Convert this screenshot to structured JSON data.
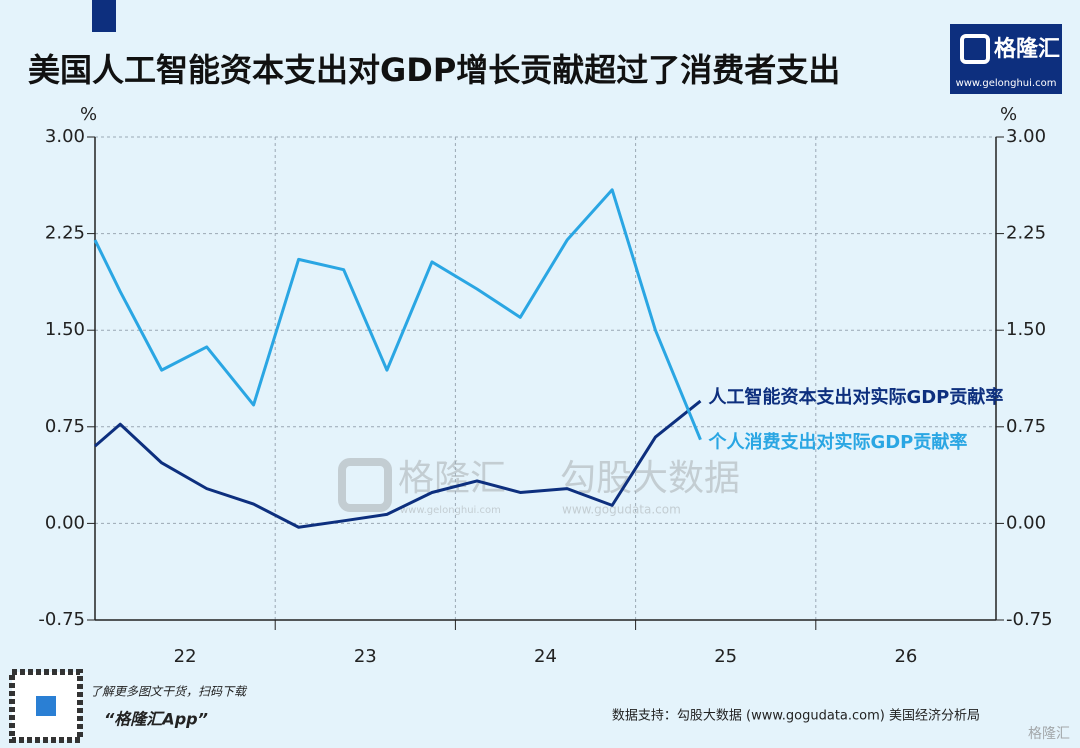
{
  "chart_data": {
    "type": "line",
    "title": "美国人工智能资本支出对GDP增长贡献超过了消费者支出",
    "y_unit": "%",
    "x": [
      22.0,
      22.14,
      22.37,
      22.62,
      22.88,
      23.13,
      23.38,
      23.62,
      23.87,
      24.12,
      24.36,
      24.62,
      24.87,
      25.11,
      25.36
    ],
    "series": [
      {
        "name": "人工智能资本支出对实际GDP贡献率",
        "color": "#0d2f7e",
        "values": [
          0.6,
          0.77,
          0.47,
          0.27,
          0.15,
          -0.03,
          0.02,
          0.07,
          0.24,
          0.33,
          0.24,
          0.27,
          0.14,
          0.67,
          0.95
        ]
      },
      {
        "name": "个人消费支出对实际GDP贡献率",
        "color": "#2aa6e3",
        "values": [
          2.2,
          1.8,
          1.19,
          1.37,
          0.92,
          2.05,
          1.97,
          1.19,
          2.03,
          1.82,
          1.6,
          2.2,
          2.59,
          1.5,
          0.65
        ]
      }
    ],
    "xlim": [
      22,
      27
    ],
    "xticks": [
      {
        "value": 22.5,
        "label": "22"
      },
      {
        "value": 23.5,
        "label": "23"
      },
      {
        "value": 24.5,
        "label": "24"
      },
      {
        "value": 25.5,
        "label": "25"
      },
      {
        "value": 26.5,
        "label": "26"
      }
    ],
    "xgrid": [
      23,
      24,
      25,
      26
    ],
    "ylim": [
      -0.75,
      3.0
    ],
    "yticks": [
      {
        "value": 3.0,
        "label": "3.00"
      },
      {
        "value": 2.25,
        "label": "2.25"
      },
      {
        "value": 1.5,
        "label": "1.50"
      },
      {
        "value": 0.75,
        "label": "0.75"
      },
      {
        "value": 0.0,
        "label": "0.00"
      },
      {
        "value": -0.75,
        "label": "-0.75"
      }
    ],
    "y2lim": [
      -0.75,
      3.0
    ],
    "y2ticks": [
      {
        "value": 3.0,
        "label": "3.00"
      },
      {
        "value": 2.25,
        "label": "2.25"
      },
      {
        "value": 1.5,
        "label": "1.50"
      },
      {
        "value": 0.75,
        "label": "0.75"
      },
      {
        "value": 0.0,
        "label": "0.00"
      },
      {
        "value": -0.75,
        "label": "-0.75"
      }
    ],
    "grid": true
  },
  "logo": {
    "name": "格隆汇",
    "url": "www.gelonghui.com"
  },
  "watermark": {
    "brand1": "格隆汇",
    "url1": "www.gelonghui.com",
    "brand2": "勾股大数据",
    "url2": "www.gogudata.com"
  },
  "footer": {
    "hint": "了解更多图文干货，扫码下载",
    "app": "“格隆汇App”",
    "source": "数据支持：勾股大数据 (www.gogudata.com) 美国经济分析局",
    "corner": "格隆汇"
  }
}
